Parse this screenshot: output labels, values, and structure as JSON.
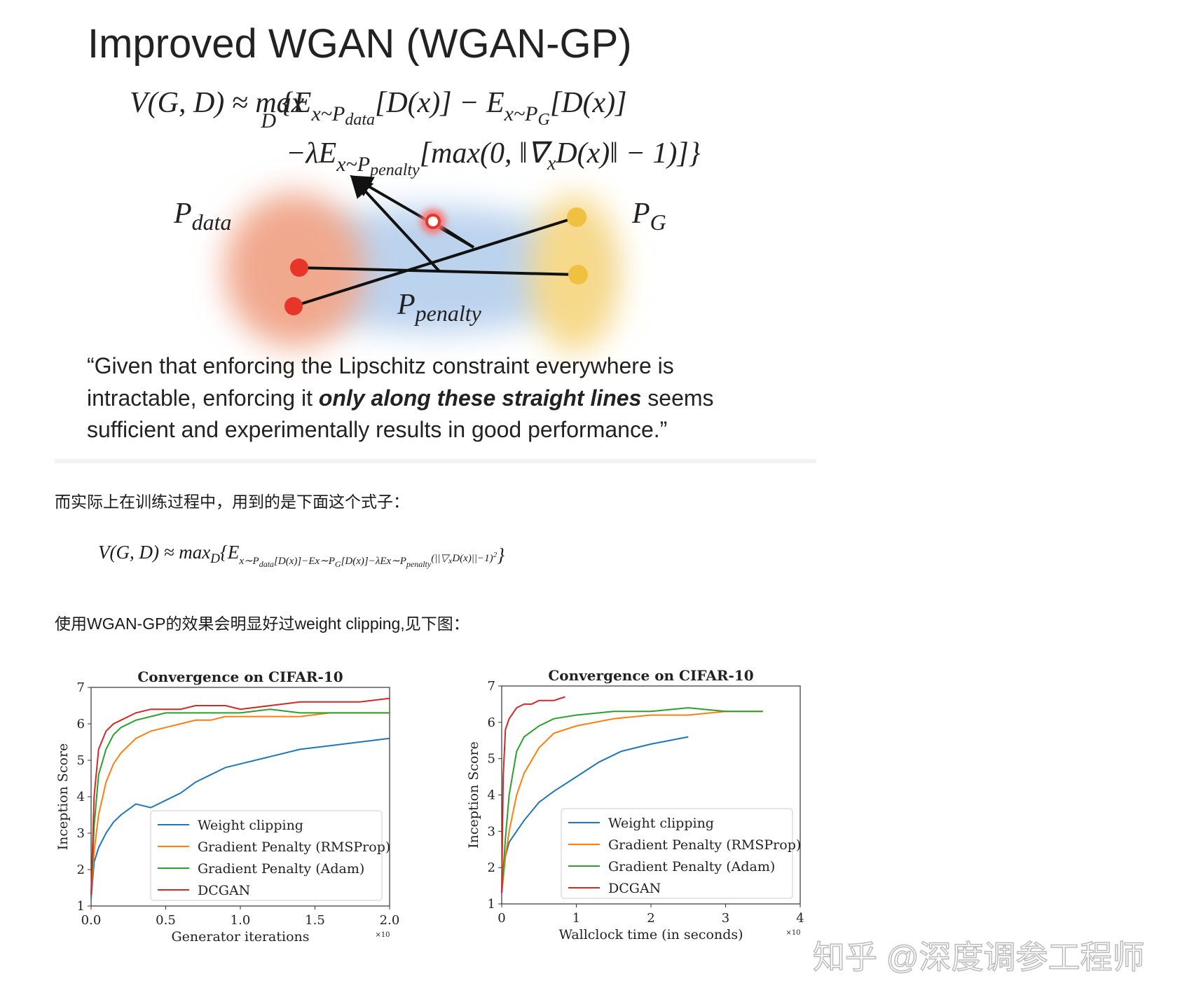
{
  "slide": {
    "title": "Improved WGAN (WGAN-GP)",
    "formula_line1": [
      "V(G, D) ≈ max",
      "D",
      "{E",
      "x~P",
      "data",
      "[D(x)] − E",
      "x~P",
      "G",
      "[D(x)]"
    ],
    "formula_line2": [
      "−λE",
      "x~P",
      "penalty",
      "[max(0, ‖∇",
      "x",
      "D(x)‖ − 1)]}"
    ],
    "label_data": [
      "P",
      "data"
    ],
    "label_g": [
      "P",
      "G"
    ],
    "label_penalty": [
      "P",
      "penalty"
    ],
    "quote": [
      "“Given that enforcing the Lipschitz constraint everywhere is",
      [
        "intractable, enforcing it ",
        "only along these straight lines",
        " seems"
      ],
      "sufficient and experimentally results in good performance.”"
    ]
  },
  "paragraph1": "而实际上在训练过程中，用到的是下面这个式子：",
  "formula": [
    "V(G, D) ≈ max",
    "D",
    "{E",
    "x∼P",
    "data",
    "[D(x)]−E",
    "x∼P",
    "G",
    "[D(x)]−λE",
    "x∼P",
    "penalty",
    "(||▽",
    "x",
    "D(x)||−1)",
    "2",
    "}"
  ],
  "paragraph2": "使用WGAN-GP的效果会明显好过weight clipping,见下图：",
  "watermark": "知乎 @深度调参工程师",
  "chart_data": [
    {
      "type": "line",
      "title": "Convergence on CIFAR-10",
      "x_label": "Generator iterations",
      "y_label": "Inception Score",
      "x_multiplier": "×10",
      "xlim": [
        0,
        2
      ],
      "ylim": [
        1,
        7
      ],
      "xticks": [
        {
          "value": 0,
          "label": "0.0"
        },
        0.5,
        {
          "value": 1,
          "label": "1.0"
        },
        1.5,
        {
          "value": 2,
          "label": "2.0"
        }
      ],
      "yticks": [
        1,
        2,
        3,
        4,
        5,
        6,
        7
      ],
      "legend": "lower right",
      "x": [
        0,
        0.02,
        0.05,
        0.1,
        0.15,
        0.2,
        0.3,
        0.4,
        0.5,
        0.6,
        0.7,
        0.8,
        0.9,
        1.0,
        1.2,
        1.4,
        1.6,
        1.8,
        2.0
      ],
      "series": [
        {
          "name": "Weight clipping",
          "color": "#1f77b4",
          "values": [
            1.2,
            2.2,
            2.6,
            3.0,
            3.3,
            3.5,
            3.8,
            3.7,
            3.9,
            4.1,
            4.4,
            4.6,
            4.8,
            4.9,
            5.1,
            5.3,
            5.4,
            5.5,
            5.6
          ]
        },
        {
          "name": "Gradient Penalty (RMSProp)",
          "color": "#ff7f0e",
          "values": [
            1.3,
            2.5,
            3.5,
            4.4,
            4.9,
            5.2,
            5.6,
            5.8,
            5.9,
            6.0,
            6.1,
            6.1,
            6.2,
            6.2,
            6.2,
            6.2,
            6.3,
            6.3,
            6.3
          ]
        },
        {
          "name": "Gradient Penalty (Adam)",
          "color": "#2ca02c",
          "values": [
            1.3,
            3.2,
            4.6,
            5.3,
            5.7,
            5.9,
            6.1,
            6.2,
            6.3,
            6.3,
            6.3,
            6.3,
            6.3,
            6.3,
            6.4,
            6.3,
            6.3,
            6.3,
            6.3
          ]
        },
        {
          "name": "DCGAN",
          "color": "#d62728",
          "values": [
            1.3,
            4.0,
            5.3,
            5.8,
            6.0,
            6.1,
            6.3,
            6.4,
            6.4,
            6.4,
            6.5,
            6.5,
            6.5,
            6.4,
            6.5,
            6.6,
            6.6,
            6.6,
            6.7
          ]
        }
      ]
    },
    {
      "type": "line",
      "title": "Convergence on CIFAR-10",
      "x_label": "Wallclock time (in seconds)",
      "y_label": "Inception Score",
      "x_multiplier": "×10",
      "xlim": [
        0,
        4
      ],
      "ylim": [
        1,
        7
      ],
      "xticks": [
        0,
        1,
        2,
        3,
        4
      ],
      "yticks": [
        1,
        2,
        3,
        4,
        5,
        6,
        7
      ],
      "legend": "lower right",
      "series": [
        {
          "name": "Weight clipping",
          "color": "#1f77b4",
          "x": [
            0,
            0.05,
            0.1,
            0.2,
            0.3,
            0.5,
            0.7,
            1.0,
            1.3,
            1.6,
            2.0,
            2.5
          ],
          "values": [
            1.3,
            2.3,
            2.7,
            3.0,
            3.3,
            3.8,
            4.1,
            4.5,
            4.9,
            5.2,
            5.4,
            5.6
          ]
        },
        {
          "name": "Gradient Penalty (RMSProp)",
          "color": "#ff7f0e",
          "x": [
            0,
            0.05,
            0.1,
            0.2,
            0.3,
            0.5,
            0.7,
            1.0,
            1.5,
            2.0,
            2.5,
            3.0,
            3.5
          ],
          "values": [
            1.3,
            2.3,
            3.0,
            4.0,
            4.6,
            5.3,
            5.7,
            5.9,
            6.1,
            6.2,
            6.2,
            6.3,
            6.3
          ]
        },
        {
          "name": "Gradient Penalty (Adam)",
          "color": "#2ca02c",
          "x": [
            0,
            0.05,
            0.1,
            0.2,
            0.3,
            0.5,
            0.7,
            1.0,
            1.5,
            2.0,
            2.5,
            3.0,
            3.5
          ],
          "values": [
            1.3,
            2.8,
            4.0,
            5.2,
            5.6,
            5.9,
            6.1,
            6.2,
            6.3,
            6.3,
            6.4,
            6.3,
            6.3
          ]
        },
        {
          "name": "DCGAN",
          "color": "#d62728",
          "x": [
            0,
            0.02,
            0.05,
            0.1,
            0.2,
            0.3,
            0.4,
            0.5,
            0.6,
            0.7,
            0.85
          ],
          "values": [
            1.3,
            4.5,
            5.8,
            6.1,
            6.4,
            6.5,
            6.5,
            6.6,
            6.6,
            6.6,
            6.7
          ]
        }
      ]
    }
  ]
}
